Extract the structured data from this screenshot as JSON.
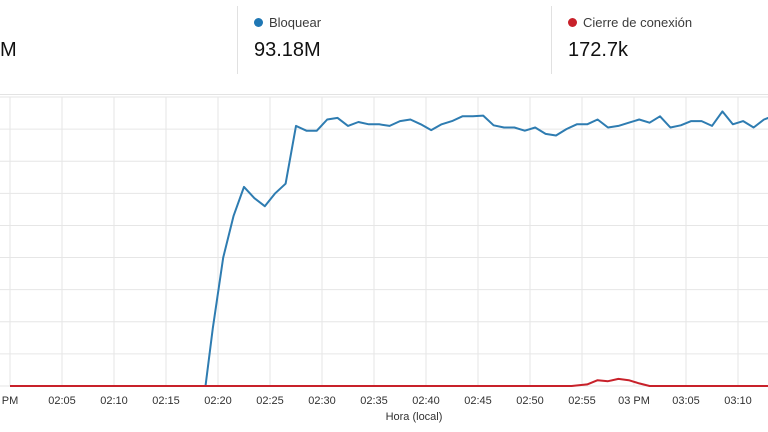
{
  "stats": [
    {
      "label": "",
      "value": "M",
      "color": "#1f77b4"
    },
    {
      "label": "Bloquear",
      "value": "93.18M",
      "color": "#1f77b4"
    },
    {
      "label": "Cierre de conexión",
      "value": "172.7k",
      "color": "#c8212a"
    }
  ],
  "chart_data": {
    "type": "line",
    "xlabel": "Hora (local)",
    "x_tick_labels": [
      "PM",
      "02:05",
      "02:10",
      "02:15",
      "02:20",
      "02:25",
      "02:30",
      "02:35",
      "02:40",
      "02:45",
      "02:50",
      "02:55",
      "03 PM",
      "03:05",
      "03:10"
    ],
    "grid": true,
    "series": [
      {
        "name": "Bloquear",
        "color": "#2e7cb1",
        "points": [
          [
            0,
            0
          ],
          [
            2.5,
            0
          ],
          [
            5,
            0
          ],
          [
            7.5,
            0
          ],
          [
            10,
            0
          ],
          [
            12.5,
            0
          ],
          [
            15,
            0
          ],
          [
            17.5,
            0
          ],
          [
            18.8,
            0
          ],
          [
            19.5,
            1.8
          ],
          [
            20.5,
            4.0
          ],
          [
            21.5,
            5.3
          ],
          [
            22.5,
            6.2
          ],
          [
            23.5,
            5.85
          ],
          [
            24.5,
            5.6
          ],
          [
            25.5,
            6.0
          ],
          [
            26.5,
            6.3
          ],
          [
            27.5,
            8.1
          ],
          [
            28.5,
            7.95
          ],
          [
            29.5,
            7.95
          ],
          [
            30.5,
            8.3
          ],
          [
            31.5,
            8.35
          ],
          [
            32.5,
            8.1
          ],
          [
            33.5,
            8.22
          ],
          [
            34.5,
            8.15
          ],
          [
            35.5,
            8.15
          ],
          [
            36.5,
            8.1
          ],
          [
            37.5,
            8.25
          ],
          [
            38.5,
            8.3
          ],
          [
            39.5,
            8.15
          ],
          [
            40.5,
            7.97
          ],
          [
            41.5,
            8.15
          ],
          [
            42.5,
            8.25
          ],
          [
            43.5,
            8.4
          ],
          [
            44.5,
            8.4
          ],
          [
            45.5,
            8.42
          ],
          [
            46.5,
            8.12
          ],
          [
            47.5,
            8.05
          ],
          [
            48.5,
            8.05
          ],
          [
            49.5,
            7.95
          ],
          [
            50.5,
            8.05
          ],
          [
            51.5,
            7.85
          ],
          [
            52.5,
            7.8
          ],
          [
            53.5,
            8.0
          ],
          [
            54.5,
            8.15
          ],
          [
            55.5,
            8.15
          ],
          [
            56.5,
            8.3
          ],
          [
            57.5,
            8.05
          ],
          [
            58.5,
            8.1
          ],
          [
            59.5,
            8.2
          ],
          [
            60.5,
            8.3
          ],
          [
            61.5,
            8.2
          ],
          [
            62.5,
            8.4
          ],
          [
            63.5,
            8.05
          ],
          [
            64.5,
            8.12
          ],
          [
            65.5,
            8.25
          ],
          [
            66.5,
            8.25
          ],
          [
            67.5,
            8.1
          ],
          [
            68.5,
            8.55
          ],
          [
            69.5,
            8.15
          ],
          [
            70.5,
            8.25
          ],
          [
            71.5,
            8.05
          ],
          [
            72.5,
            8.3
          ],
          [
            73.5,
            8.42
          ]
        ]
      },
      {
        "name": "Cierre de conexión",
        "color": "#c8212a",
        "points": [
          [
            0,
            0
          ],
          [
            10,
            0
          ],
          [
            20,
            0
          ],
          [
            30,
            0
          ],
          [
            40,
            0
          ],
          [
            50,
            0
          ],
          [
            54,
            0
          ],
          [
            55.5,
            0.05
          ],
          [
            56.5,
            0.18
          ],
          [
            57.5,
            0.15
          ],
          [
            58.5,
            0.22
          ],
          [
            59.5,
            0.18
          ],
          [
            60.5,
            0.08
          ],
          [
            61.5,
            0
          ],
          [
            65,
            0
          ],
          [
            70,
            0
          ],
          [
            73.5,
            0
          ]
        ]
      }
    ]
  }
}
